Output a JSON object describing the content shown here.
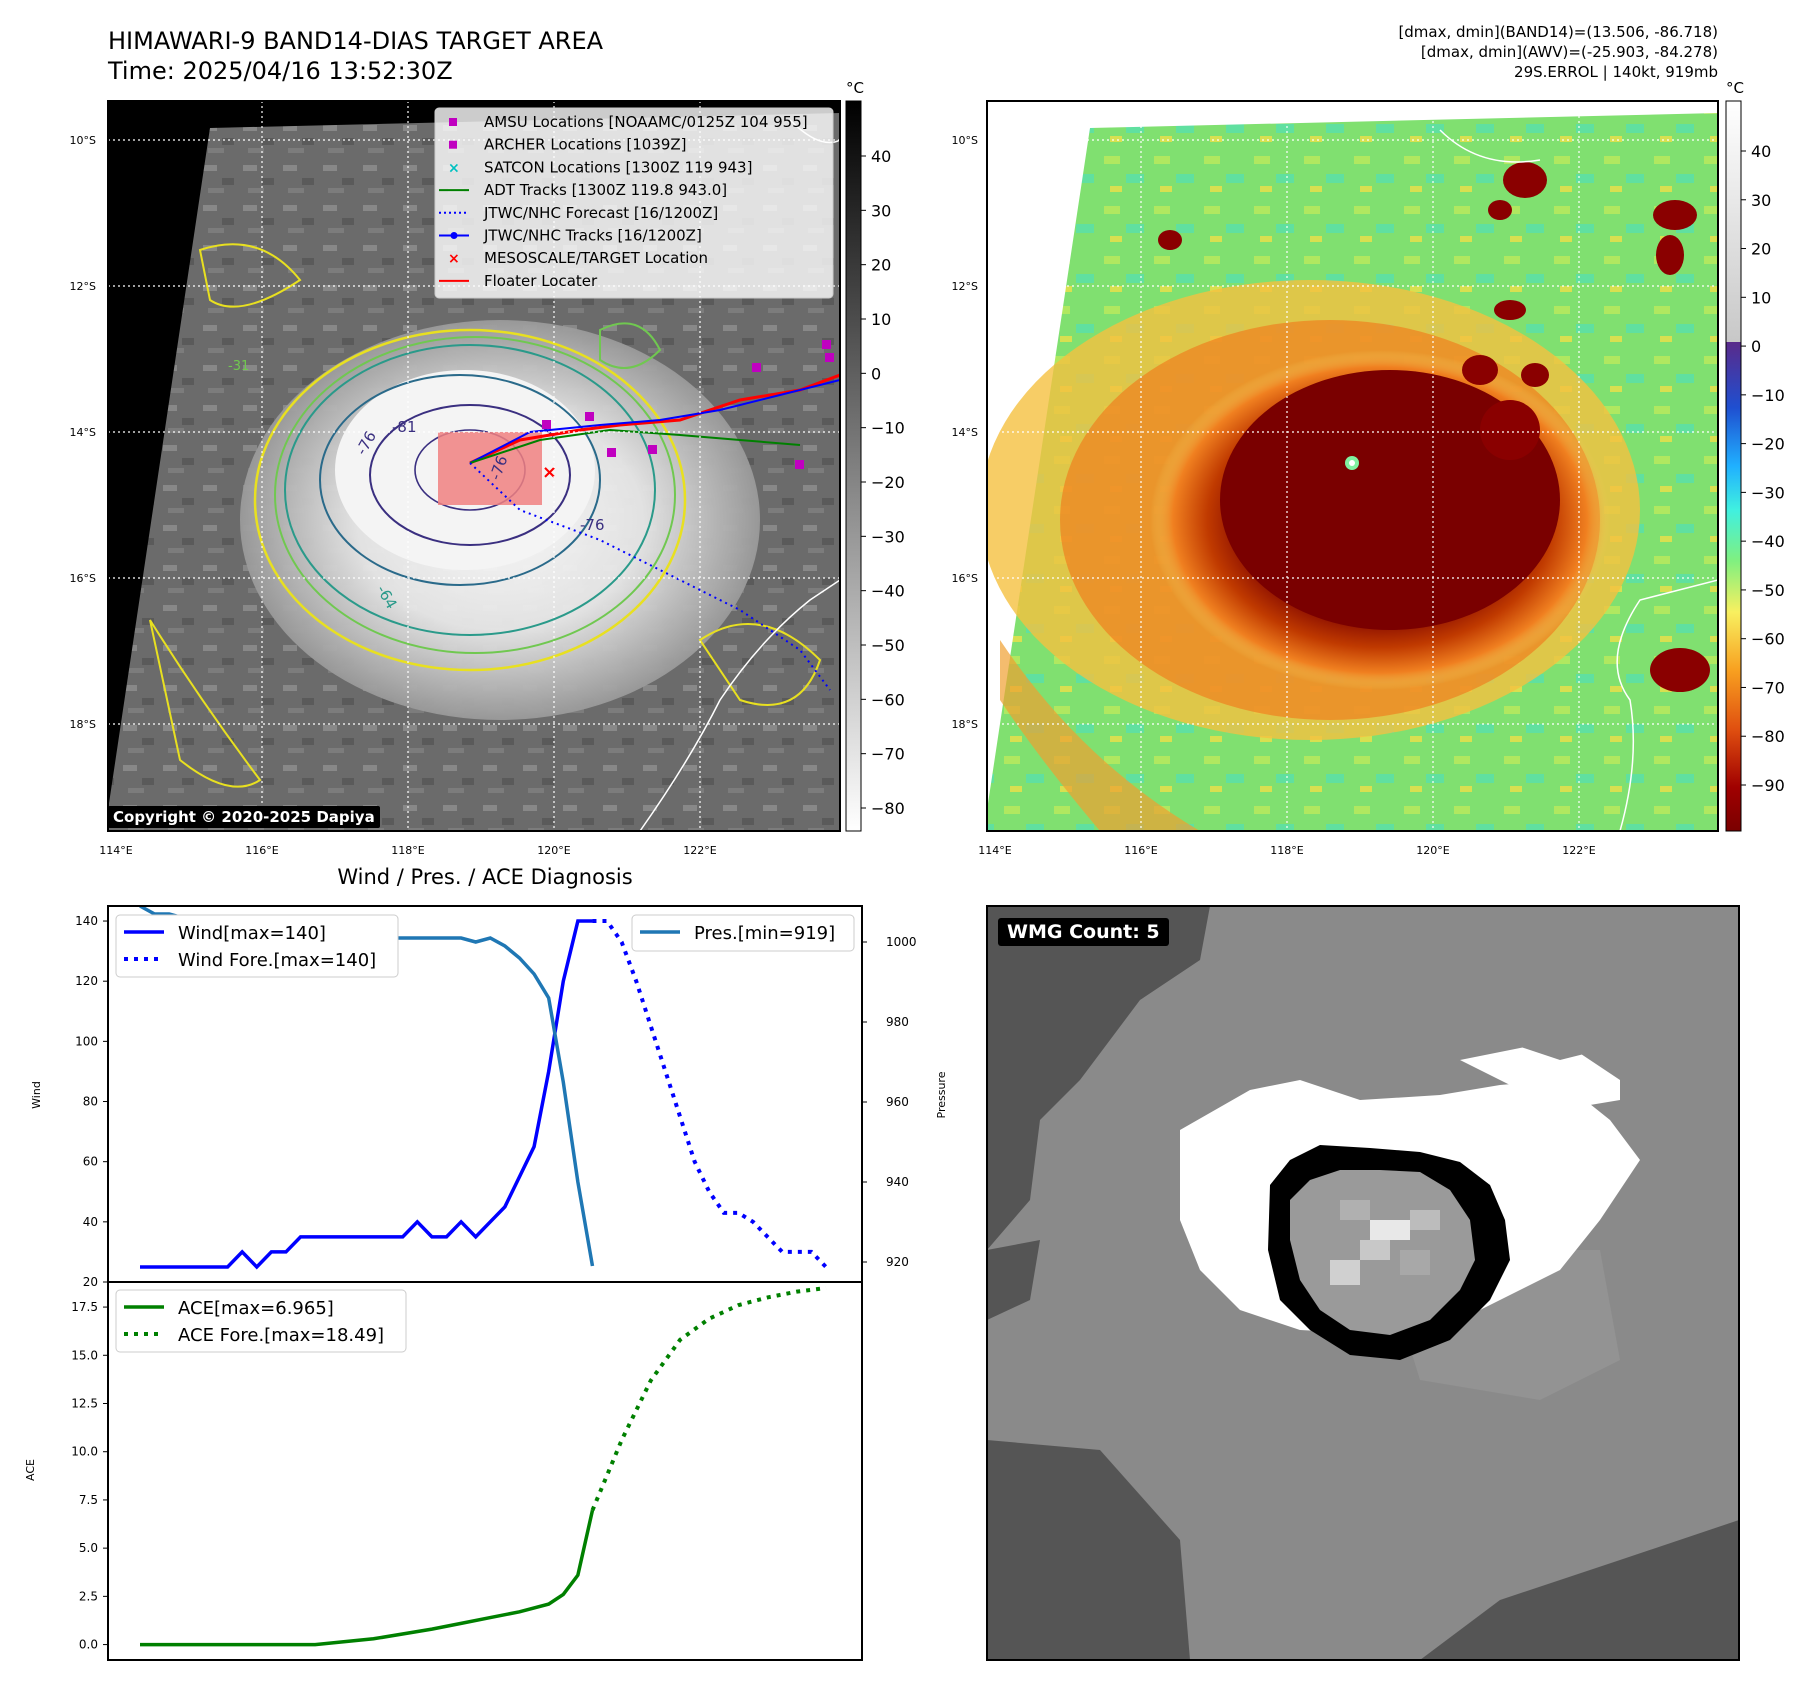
{
  "header": {
    "title_line1": "HIMAWARI-9 BAND14-DIAS TARGET AREA",
    "title_line2": "Time: 2025/04/16 13:52:30Z",
    "info_line1": "[dmax, dmin](BAND14)=(13.506, -86.718)",
    "info_line2": "[dmax, dmin](AWV)=(-25.903, -84.278)",
    "info_line3": "29S.ERROL | 140kt, 919mb"
  },
  "map": {
    "lat_labels": [
      "10°S",
      "12°S",
      "14°S",
      "16°S",
      "18°S"
    ],
    "lon_labels": [
      "114°E",
      "116°E",
      "118°E",
      "120°E",
      "122°E"
    ],
    "contour_labels": [
      "-81",
      "-76",
      "-76",
      "-76",
      "-64",
      "-31"
    ],
    "copyright": "Copyright © 2020-2025 Dapiya",
    "legend": [
      {
        "label": "AMSU Locations [NOAAMC/0125Z 104 955]",
        "marker": "square",
        "color": "#c000c0"
      },
      {
        "label": "ARCHER Locations [1039Z]",
        "marker": "square",
        "color": "#c000c0"
      },
      {
        "label": "SATCON Locations [1300Z 119 943]",
        "marker": "x",
        "color": "#00c0c0"
      },
      {
        "label": "ADT Tracks [1300Z 119.8 943.0]",
        "marker": "line",
        "color": "#008000"
      },
      {
        "label": "JTWC/NHC Forecast [16/1200Z]",
        "marker": "dotted",
        "color": "#0000ff"
      },
      {
        "label": "JTWC/NHC Tracks [16/1200Z]",
        "marker": "line-dot",
        "color": "#0000ff"
      },
      {
        "label": "MESOSCALE/TARGET Location",
        "marker": "x",
        "color": "#ff0000"
      },
      {
        "label": "Floater Locater",
        "marker": "line",
        "color": "#ff0000"
      }
    ]
  },
  "colorbar_gray": {
    "unit": "°C",
    "ticks": [
      "40",
      "30",
      "20",
      "10",
      "0",
      "−10",
      "−20",
      "−30",
      "−40",
      "−50",
      "−60",
      "−70",
      "−80"
    ]
  },
  "colorbar_color": {
    "unit": "°C",
    "ticks": [
      "40",
      "30",
      "20",
      "10",
      "0",
      "−10",
      "−20",
      "−30",
      "−40",
      "−50",
      "−60",
      "−70",
      "−80",
      "−90"
    ]
  },
  "wmg": {
    "label": "WMG Count: 5"
  },
  "chart_data": [
    {
      "type": "line",
      "title": "Wind / Pres. / ACE Diagnosis",
      "ylabel": "Wind",
      "y2label": "Pressure",
      "ylim": [
        20,
        145
      ],
      "y2lim": [
        915,
        1009
      ],
      "yticks": [
        "20",
        "40",
        "60",
        "80",
        "100",
        "120",
        "140"
      ],
      "y2ticks": [
        "920",
        "940",
        "960",
        "980",
        "1000"
      ],
      "legend_left": [
        "Wind[max=140]",
        "Wind Fore.[max=140]"
      ],
      "legend_right": [
        "Pres.[min=919]"
      ],
      "series": [
        {
          "name": "Wind[max=140]",
          "style": "solid",
          "color": "#0000ff",
          "x": [
            0,
            1,
            2,
            3,
            4,
            5,
            6,
            7,
            8,
            9,
            10,
            11,
            12,
            13,
            14,
            15,
            16,
            17,
            18,
            19,
            20,
            21,
            22,
            23,
            24,
            25,
            26,
            27,
            28,
            29,
            30,
            31
          ],
          "values": [
            25,
            25,
            25,
            25,
            25,
            25,
            25,
            30,
            25,
            30,
            30,
            35,
            35,
            35,
            35,
            35,
            35,
            35,
            35,
            40,
            35,
            35,
            40,
            35,
            40,
            45,
            55,
            65,
            90,
            120,
            140,
            140
          ]
        },
        {
          "name": "Wind Fore.[max=140]",
          "style": "dotted",
          "color": "#0000ff",
          "x": [
            31,
            32,
            33,
            34,
            35,
            36,
            37,
            38,
            39,
            40,
            41,
            42,
            43,
            44,
            45,
            46,
            47
          ],
          "values": [
            140,
            140,
            133,
            120,
            105,
            90,
            75,
            60,
            50,
            43,
            43,
            40,
            35,
            30,
            30,
            30,
            25
          ]
        },
        {
          "name": "Pres.[min=919]",
          "style": "solid",
          "color": "#1f77b4",
          "axis": "right",
          "x": [
            0,
            1,
            2,
            3,
            4,
            5,
            6,
            7,
            8,
            9,
            10,
            11,
            12,
            13,
            14,
            15,
            16,
            17,
            18,
            19,
            20,
            21,
            22,
            23,
            24,
            25,
            26,
            27,
            28,
            29,
            30,
            31
          ],
          "values": [
            1009,
            1007,
            1007,
            1006,
            1004,
            1002,
            1001,
            1002,
            1001,
            1001,
            1001,
            1001,
            1001,
            1001,
            1001,
            1001,
            1001,
            1001,
            1001,
            1001,
            1001,
            1001,
            1001,
            1000,
            1001,
            999,
            996,
            992,
            986,
            965,
            940,
            919
          ]
        }
      ]
    },
    {
      "type": "line",
      "ylabel": "ACE",
      "ylim": [
        -0.8,
        18.8
      ],
      "yticks": [
        "0.0",
        "2.5",
        "5.0",
        "7.5",
        "10.0",
        "12.5",
        "15.0",
        "17.5"
      ],
      "legend": [
        "ACE[max=6.965]",
        "ACE Fore.[max=18.49]"
      ],
      "series": [
        {
          "name": "ACE[max=6.965]",
          "style": "solid",
          "color": "#008000",
          "x": [
            0,
            4,
            8,
            12,
            16,
            20,
            22,
            24,
            26,
            28,
            29,
            30,
            31
          ],
          "values": [
            0.0,
            0.0,
            0.0,
            0.0,
            0.3,
            0.8,
            1.1,
            1.4,
            1.7,
            2.1,
            2.6,
            3.6,
            6.965
          ]
        },
        {
          "name": "ACE Fore.[max=18.49]",
          "style": "dotted",
          "color": "#008000",
          "x": [
            31,
            33,
            35,
            37,
            39,
            41,
            43,
            45,
            47
          ],
          "values": [
            6.965,
            10.6,
            13.7,
            15.8,
            16.9,
            17.6,
            18.0,
            18.3,
            18.49
          ]
        }
      ]
    }
  ]
}
